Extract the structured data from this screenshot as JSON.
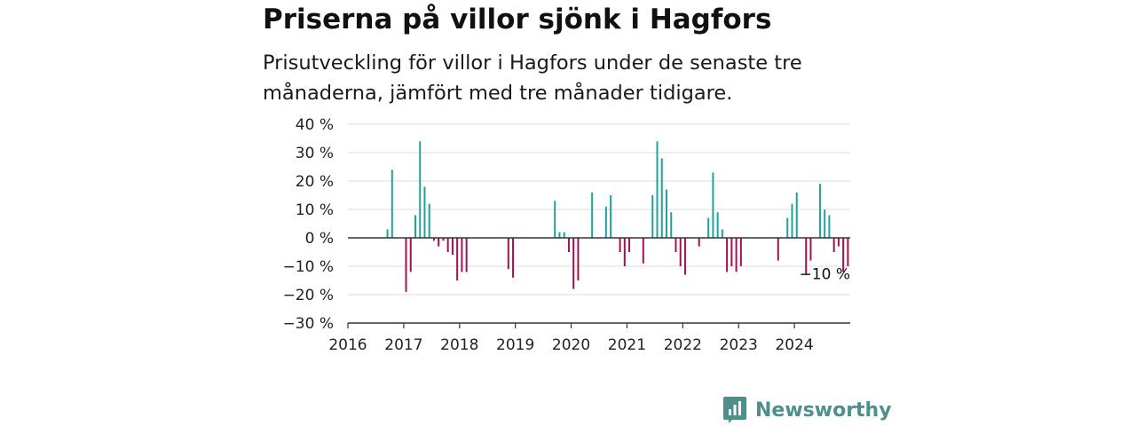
{
  "header": {
    "title": "Priserna på villor sjönk i Hagfors",
    "subtitle": "Prisutveckling för villor i Hagfors under de senaste tre månaderna, jämfört med tre månader tidigare."
  },
  "brand": {
    "name": "Newsworthy",
    "color": "#4f8f8b",
    "icon": "newsworthy-logo-icon"
  },
  "colors": {
    "positive": "#20a39a",
    "negative": "#a3124f",
    "zero_line": "#333333",
    "grid": "#dddddd"
  },
  "chart_data": {
    "type": "bar",
    "title": "Priserna på villor sjönk i Hagfors",
    "subtitle": "Prisutveckling för villor i Hagfors under de senaste tre månaderna, jämfört med tre månader tidigare.",
    "xlabel": "",
    "ylabel": "",
    "ylim": [
      -30,
      40
    ],
    "xlim": [
      "2016-01",
      "2025-01"
    ],
    "y_ticks": [
      40,
      30,
      20,
      10,
      0,
      -10,
      -20,
      -30
    ],
    "y_tick_labels": [
      "40 %",
      "30 %",
      "20 %",
      "10 %",
      "0 %",
      "−10 %",
      "−20 %",
      "−30 %"
    ],
    "x_tick_labels": [
      "2016",
      "2017",
      "2018",
      "2019",
      "2020",
      "2021",
      "2022",
      "2023",
      "2024"
    ],
    "grid": true,
    "unit": "%",
    "annotation": {
      "label": "−10 %",
      "attached_to": "last"
    },
    "points": [
      {
        "date": "2016-09",
        "value": 3
      },
      {
        "date": "2016-10",
        "value": 24
      },
      {
        "date": "2017-01",
        "value": -19
      },
      {
        "date": "2017-02",
        "value": -12
      },
      {
        "date": "2017-03",
        "value": 8
      },
      {
        "date": "2017-04",
        "value": 34
      },
      {
        "date": "2017-05",
        "value": 18
      },
      {
        "date": "2017-06",
        "value": 12
      },
      {
        "date": "2017-07",
        "value": -1
      },
      {
        "date": "2017-08",
        "value": -3
      },
      {
        "date": "2017-09",
        "value": -1
      },
      {
        "date": "2017-10",
        "value": -5
      },
      {
        "date": "2017-11",
        "value": -6
      },
      {
        "date": "2017-12",
        "value": -15
      },
      {
        "date": "2018-01",
        "value": -12
      },
      {
        "date": "2018-02",
        "value": -12
      },
      {
        "date": "2018-11",
        "value": -11
      },
      {
        "date": "2018-12",
        "value": -14
      },
      {
        "date": "2019-09",
        "value": 13
      },
      {
        "date": "2019-10",
        "value": 2
      },
      {
        "date": "2019-11",
        "value": 2
      },
      {
        "date": "2019-12",
        "value": -5
      },
      {
        "date": "2020-01",
        "value": -18
      },
      {
        "date": "2020-02",
        "value": -15
      },
      {
        "date": "2020-05",
        "value": 16
      },
      {
        "date": "2020-08",
        "value": 11
      },
      {
        "date": "2020-09",
        "value": 15
      },
      {
        "date": "2020-11",
        "value": -5
      },
      {
        "date": "2020-12",
        "value": -10
      },
      {
        "date": "2021-01",
        "value": -5
      },
      {
        "date": "2021-04",
        "value": -9
      },
      {
        "date": "2021-06",
        "value": 15
      },
      {
        "date": "2021-07",
        "value": 34
      },
      {
        "date": "2021-08",
        "value": 28
      },
      {
        "date": "2021-09",
        "value": 17
      },
      {
        "date": "2021-10",
        "value": 9
      },
      {
        "date": "2021-11",
        "value": -5
      },
      {
        "date": "2021-12",
        "value": -10
      },
      {
        "date": "2022-01",
        "value": -13
      },
      {
        "date": "2022-04",
        "value": -3
      },
      {
        "date": "2022-06",
        "value": 7
      },
      {
        "date": "2022-07",
        "value": 23
      },
      {
        "date": "2022-08",
        "value": 9
      },
      {
        "date": "2022-09",
        "value": 3
      },
      {
        "date": "2022-10",
        "value": -12
      },
      {
        "date": "2022-11",
        "value": -10
      },
      {
        "date": "2022-12",
        "value": -12
      },
      {
        "date": "2023-01",
        "value": -10
      },
      {
        "date": "2023-09",
        "value": -8
      },
      {
        "date": "2023-11",
        "value": 7
      },
      {
        "date": "2023-12",
        "value": 12
      },
      {
        "date": "2024-01",
        "value": 16
      },
      {
        "date": "2024-03",
        "value": -13
      },
      {
        "date": "2024-04",
        "value": -8
      },
      {
        "date": "2024-06",
        "value": 19
      },
      {
        "date": "2024-07",
        "value": 10
      },
      {
        "date": "2024-08",
        "value": 8
      },
      {
        "date": "2024-09",
        "value": -5
      },
      {
        "date": "2024-10",
        "value": -3
      },
      {
        "date": "2024-11",
        "value": -12
      },
      {
        "date": "2024-12",
        "value": -10
      }
    ]
  }
}
